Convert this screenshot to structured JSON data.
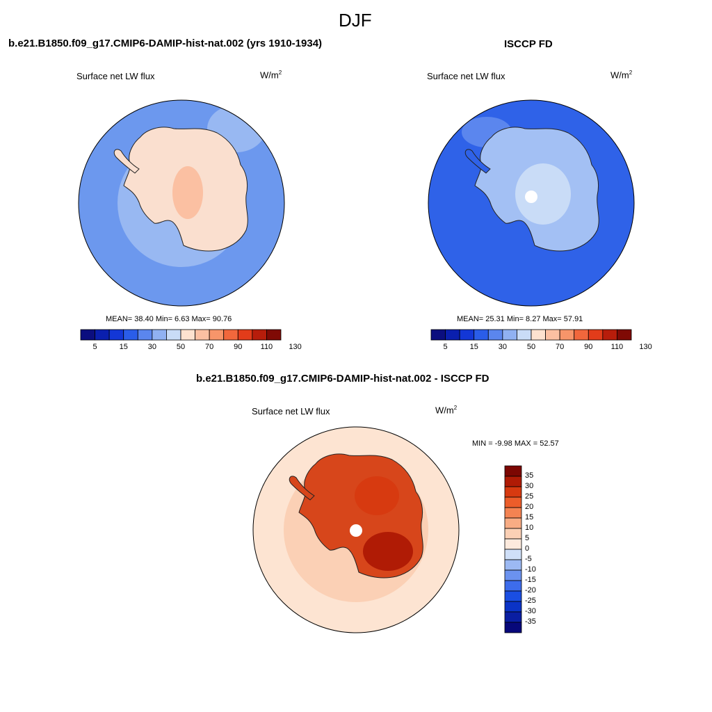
{
  "figure": {
    "season": "DJF"
  },
  "panels": [
    {
      "title": "b.e21.B1850.f09_g17.CMIP6-DAMIP-hist-nat.002 (yrs 1910-1934)",
      "variable": "Surface net LW flux",
      "units_base": "W/m",
      "units_exp": "2",
      "stats": "MEAN=  38.40  Min=   6.63  Max=  90.76"
    },
    {
      "title": "ISCCP FD",
      "variable": "Surface net LW flux",
      "units_base": "W/m",
      "units_exp": "2",
      "stats": "MEAN=  25.31  Min=   8.27  Max=  57.91"
    },
    {
      "title": "b.e21.B1850.f09_g17.CMIP6-DAMIP-hist-nat.002 - ISCCP FD",
      "variable": "Surface net LW flux",
      "units_base": "W/m",
      "units_exp": "2",
      "stats": "MIN =  -9.98 MAX =  52.57"
    }
  ],
  "colors": {
    "abs_scale": [
      "#0b0e7f",
      "#0a1fae",
      "#1337d6",
      "#2a5de9",
      "#5b86ee",
      "#90b1f2",
      "#c9dcf7",
      "#fde2cf",
      "#fbc0a2",
      "#f7956a",
      "#f1673c",
      "#e23c1a",
      "#b71d0b",
      "#7f0a05"
    ],
    "diff_scale": [
      "#07087a",
      "#0a1ea2",
      "#0b33c6",
      "#1a4ee2",
      "#3d6ceb",
      "#6b92ef",
      "#9cb9f3",
      "#cfdff8",
      "#fdeadd",
      "#fbd0b5",
      "#f8ac84",
      "#f48352",
      "#ec5d2a",
      "#d73a10",
      "#b01b05",
      "#7c0702"
    ],
    "ocean_model": "#6c98ee",
    "ocean_model_light": "#98b8f2",
    "antarctica_model": "#fadfcf",
    "ocean_obs": "#2f62e8",
    "antarctica_obs": "#a3c0f4",
    "ocean_diff": "#fde4d2",
    "antarctica_diff": "#d7461b"
  },
  "chart_data": [
    {
      "type": "heatmap",
      "title": "b.e21.B1850.f09_g17.CMIP6-DAMIP-hist-nat.002 (yrs 1910-1934)",
      "variable": "Surface net LW flux",
      "units": "W/m2",
      "projection": "south polar stereographic",
      "mean": 38.4,
      "min": 6.63,
      "max": 90.76,
      "colorbar_levels": [
        5,
        10,
        15,
        20,
        30,
        40,
        50,
        60,
        70,
        80,
        90,
        100,
        110,
        120,
        130
      ],
      "colorbar_tick_labels": [
        "5",
        "15",
        "30",
        "50",
        "70",
        "90",
        "110",
        "130"
      ]
    },
    {
      "type": "heatmap",
      "title": "ISCCP FD",
      "variable": "Surface net LW flux",
      "units": "W/m2",
      "projection": "south polar stereographic",
      "mean": 25.31,
      "min": 8.27,
      "max": 57.91,
      "colorbar_levels": [
        5,
        10,
        15,
        20,
        30,
        40,
        50,
        60,
        70,
        80,
        90,
        100,
        110,
        120,
        130
      ],
      "colorbar_tick_labels": [
        "5",
        "15",
        "30",
        "50",
        "70",
        "90",
        "110",
        "130"
      ]
    },
    {
      "type": "heatmap",
      "title": "b.e21.B1850.f09_g17.CMIP6-DAMIP-hist-nat.002 - ISCCP FD",
      "variable": "Surface net LW flux",
      "units": "W/m2",
      "projection": "south polar stereographic",
      "min": -9.98,
      "max": 52.57,
      "colorbar_levels": [
        -35,
        -30,
        -25,
        -20,
        -15,
        -10,
        -5,
        0,
        5,
        10,
        15,
        20,
        25,
        30,
        35
      ],
      "colorbar_tick_labels": [
        "35",
        "30",
        "25",
        "20",
        "15",
        "10",
        "5",
        "0",
        "-5",
        "-10",
        "-15",
        "-20",
        "-25",
        "-30",
        "-35"
      ]
    }
  ]
}
